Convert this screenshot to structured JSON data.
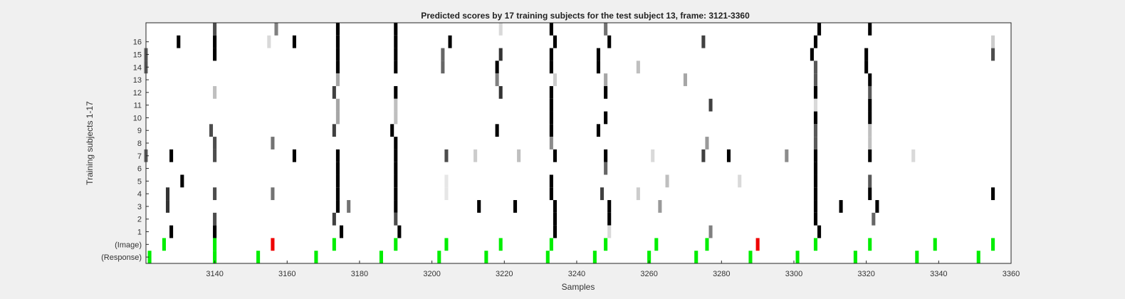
{
  "chart_data": {
    "type": "heatmap",
    "title": "Predicted scores by 17 training subjects for the test subject 13, frame: 3121-3360",
    "xlabel": "Samples",
    "ylabel": "Training subjects 1-17",
    "xlim": [
      3121,
      3360
    ],
    "x_ticks": [
      3140,
      3160,
      3180,
      3200,
      3220,
      3240,
      3260,
      3280,
      3300,
      3320,
      3340,
      3360
    ],
    "y_rows": [
      "(Response)",
      "(Image)",
      "1",
      "2",
      "3",
      "4",
      "5",
      "6",
      "7",
      "8",
      "9",
      "10",
      "11",
      "12",
      "13",
      "14",
      "15",
      "16",
      "17"
    ],
    "y_tick_labels": [
      "(Response)",
      "(Image)",
      "1",
      "2",
      "3",
      "4",
      "5",
      "6",
      "7",
      "8",
      "9",
      "10",
      "11",
      "12",
      "13",
      "14",
      "15",
      "16"
    ],
    "colors": {
      "score_high": "#000000",
      "background": "#ffffff",
      "response_event": "#00ee00",
      "image_event": "#00ee00",
      "image_error": "#ee0000"
    },
    "response_events": [
      3122,
      3140,
      3152,
      3168,
      3186,
      3202,
      3215,
      3232,
      3245,
      3260,
      3273,
      3288,
      3301,
      3317,
      3334,
      3351
    ],
    "image_events": [
      {
        "x": 3126,
        "c": "g"
      },
      {
        "x": 3140,
        "c": "g"
      },
      {
        "x": 3156,
        "c": "r"
      },
      {
        "x": 3173,
        "c": "g"
      },
      {
        "x": 3190,
        "c": "g"
      },
      {
        "x": 3204,
        "c": "g"
      },
      {
        "x": 3219,
        "c": "g"
      },
      {
        "x": 3233,
        "c": "g"
      },
      {
        "x": 3248,
        "c": "g"
      },
      {
        "x": 3262,
        "c": "g"
      },
      {
        "x": 3276,
        "c": "g"
      },
      {
        "x": 3290,
        "c": "r"
      },
      {
        "x": 3306,
        "c": "g"
      },
      {
        "x": 3321,
        "c": "g"
      },
      {
        "x": 3339,
        "c": "g"
      },
      {
        "x": 3355,
        "c": "g"
      }
    ],
    "columns": [
      {
        "x": 3121,
        "rows": [
          7,
          14,
          15
        ],
        "v": 0.6
      },
      {
        "x": 3127,
        "rows": [
          3,
          4
        ],
        "v": 0.8
      },
      {
        "x": 3128,
        "rows": [
          1,
          7
        ],
        "v": 1.0
      },
      {
        "x": 3130,
        "rows": [
          16
        ],
        "v": 1.0
      },
      {
        "x": 3131,
        "rows": [
          5
        ],
        "v": 1.0
      },
      {
        "x": 3140,
        "rows": [
          2,
          4,
          7,
          8,
          17
        ],
        "v": 0.7
      },
      {
        "x": 3140,
        "rows": [
          1,
          15,
          16
        ],
        "v": 1.0
      },
      {
        "x": 3140,
        "rows": [
          12
        ],
        "v": 0.25
      },
      {
        "x": 3139,
        "rows": [
          9
        ],
        "v": 0.7
      },
      {
        "x": 3156,
        "rows": [
          4,
          8
        ],
        "v": 0.55
      },
      {
        "x": 3157,
        "rows": [
          17
        ],
        "v": 0.5
      },
      {
        "x": 3155,
        "rows": [
          16
        ],
        "v": 0.15
      },
      {
        "x": 3162,
        "rows": [
          7,
          16
        ],
        "v": 1.0
      },
      {
        "x": 3174,
        "rows": [
          3,
          4,
          5,
          6,
          7,
          14,
          15,
          16,
          17
        ],
        "v": 1.0
      },
      {
        "x": 3174,
        "rows": [
          10,
          11,
          13
        ],
        "v": 0.35
      },
      {
        "x": 3173,
        "rows": [
          2,
          9,
          12
        ],
        "v": 0.75
      },
      {
        "x": 3175,
        "rows": [
          1
        ],
        "v": 1.0
      },
      {
        "x": 3177,
        "rows": [
          3
        ],
        "v": 0.55
      },
      {
        "x": 3189,
        "rows": [
          9
        ],
        "v": 1.0
      },
      {
        "x": 3190,
        "rows": [
          3,
          4,
          5,
          6,
          7,
          8,
          12,
          14,
          15,
          16,
          17
        ],
        "v": 1.0
      },
      {
        "x": 3190,
        "rows": [
          2
        ],
        "v": 0.7
      },
      {
        "x": 3190,
        "rows": [
          10,
          11
        ],
        "v": 0.25
      },
      {
        "x": 3191,
        "rows": [
          1
        ],
        "v": 1.0
      },
      {
        "x": 3203,
        "rows": [
          14,
          15
        ],
        "v": 0.6
      },
      {
        "x": 3204,
        "rows": [
          4,
          5
        ],
        "v": 0.1
      },
      {
        "x": 3204,
        "rows": [
          7
        ],
        "v": 0.7
      },
      {
        "x": 3205,
        "rows": [
          16
        ],
        "v": 1.0
      },
      {
        "x": 3212,
        "rows": [
          7
        ],
        "v": 0.2
      },
      {
        "x": 3213,
        "rows": [
          3
        ],
        "v": 1.0
      },
      {
        "x": 3218,
        "rows": [
          9,
          14
        ],
        "v": 1.0
      },
      {
        "x": 3218,
        "rows": [
          13
        ],
        "v": 0.5
      },
      {
        "x": 3219,
        "rows": [
          12,
          15
        ],
        "v": 0.8
      },
      {
        "x": 3219,
        "rows": [
          17
        ],
        "v": 0.15
      },
      {
        "x": 3223,
        "rows": [
          3
        ],
        "v": 1.0
      },
      {
        "x": 3224,
        "rows": [
          7
        ],
        "v": 0.25
      },
      {
        "x": 3233,
        "rows": [
          4,
          5,
          9,
          10,
          11,
          12,
          14,
          15,
          17
        ],
        "v": 1.0
      },
      {
        "x": 3233,
        "rows": [
          8
        ],
        "v": 0.45
      },
      {
        "x": 3234,
        "rows": [
          1,
          2,
          3,
          7,
          16
        ],
        "v": 1.0
      },
      {
        "x": 3234,
        "rows": [
          13
        ],
        "v": 0.2
      },
      {
        "x": 3246,
        "rows": [
          9,
          14,
          15
        ],
        "v": 1.0
      },
      {
        "x": 3247,
        "rows": [
          4
        ],
        "v": 0.75
      },
      {
        "x": 3248,
        "rows": [
          6
        ],
        "v": 0.6
      },
      {
        "x": 3248,
        "rows": [
          17
        ],
        "v": 0.55
      },
      {
        "x": 3248,
        "rows": [
          7,
          10,
          12
        ],
        "v": 1.0
      },
      {
        "x": 3248,
        "rows": [
          13
        ],
        "v": 0.35
      },
      {
        "x": 3249,
        "rows": [
          2,
          3,
          16
        ],
        "v": 1.0
      },
      {
        "x": 3249,
        "rows": [
          1
        ],
        "v": 0.15
      },
      {
        "x": 3257,
        "rows": [
          4
        ],
        "v": 0.2
      },
      {
        "x": 3257,
        "rows": [
          14
        ],
        "v": 0.25
      },
      {
        "x": 3261,
        "rows": [
          7
        ],
        "v": 0.15
      },
      {
        "x": 3263,
        "rows": [
          3
        ],
        "v": 0.4
      },
      {
        "x": 3265,
        "rows": [
          5
        ],
        "v": 0.25
      },
      {
        "x": 3270,
        "rows": [
          13
        ],
        "v": 0.35
      },
      {
        "x": 3275,
        "rows": [
          7,
          16
        ],
        "v": 0.75
      },
      {
        "x": 3276,
        "rows": [
          8
        ],
        "v": 0.4
      },
      {
        "x": 3277,
        "rows": [
          1
        ],
        "v": 0.5
      },
      {
        "x": 3277,
        "rows": [
          11
        ],
        "v": 0.75
      },
      {
        "x": 3282,
        "rows": [
          7
        ],
        "v": 1.0
      },
      {
        "x": 3285,
        "rows": [
          5
        ],
        "v": 0.15
      },
      {
        "x": 3298,
        "rows": [
          7
        ],
        "v": 0.45
      },
      {
        "x": 3305,
        "rows": [
          15
        ],
        "v": 1.0
      },
      {
        "x": 3306,
        "rows": [
          16
        ],
        "v": 1.0
      },
      {
        "x": 3306,
        "rows": [
          2,
          3,
          4,
          5,
          6,
          7,
          10,
          12
        ],
        "v": 1.0
      },
      {
        "x": 3306,
        "rows": [
          8,
          9,
          13,
          14
        ],
        "v": 0.65
      },
      {
        "x": 3306,
        "rows": [
          11
        ],
        "v": 0.15
      },
      {
        "x": 3307,
        "rows": [
          1,
          17
        ],
        "v": 1.0
      },
      {
        "x": 3313,
        "rows": [
          3
        ],
        "v": 1.0
      },
      {
        "x": 3320,
        "rows": [
          14,
          15
        ],
        "v": 1.0
      },
      {
        "x": 3321,
        "rows": [
          4,
          7,
          10,
          11,
          13,
          17
        ],
        "v": 1.0
      },
      {
        "x": 3321,
        "rows": [
          5,
          12
        ],
        "v": 0.65
      },
      {
        "x": 3321,
        "rows": [
          8,
          9
        ],
        "v": 0.25
      },
      {
        "x": 3322,
        "rows": [
          2
        ],
        "v": 0.6
      },
      {
        "x": 3323,
        "rows": [
          3
        ],
        "v": 1.0
      },
      {
        "x": 3333,
        "rows": [
          7
        ],
        "v": 0.15
      },
      {
        "x": 3355,
        "rows": [
          4
        ],
        "v": 1.0
      },
      {
        "x": 3355,
        "rows": [
          15
        ],
        "v": 0.7
      },
      {
        "x": 3355,
        "rows": [
          16
        ],
        "v": 0.2
      }
    ]
  }
}
